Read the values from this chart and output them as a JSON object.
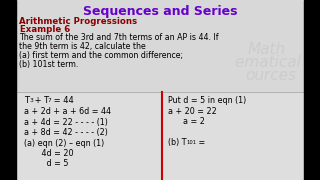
{
  "title": "Sequences and Series",
  "title_color": "#6600CC",
  "subtitle": "Arithmetic Progressions",
  "subtitle_color": "#8B0000",
  "example": "Example 6",
  "example_color": "#8B0000",
  "problem_lines": [
    "The sum of the 3rd and 7th terms of an AP is 44. If",
    "the 9th term is 42, calculate the",
    "(a) first term and the common difference;",
    "(b) 101st term."
  ],
  "problem_color": "#000000",
  "bg_color": "#E8E8E8",
  "top_bg": "#D8D8D8",
  "bottom_bg": "#E0E0E0",
  "divider_color": "#CC0000",
  "left_lines": [
    "a + 2d + a + 6d = 44",
    "a + 4d = 22 - - - - (1)",
    "a + 8d = 42 - - - - (2)",
    "(a) eqn (2) – eqn (1)",
    "       4d = 20",
    "         d = 5"
  ],
  "right_lines": [
    "Put d = 5 in eqn (1)",
    "a + 20 = 22",
    "      a = 2",
    "",
    "(b) T"
  ],
  "watermark_lines": [
    "Math",
    "ematical Res",
    "ources"
  ],
  "watermark_color": "#C8C8C8"
}
